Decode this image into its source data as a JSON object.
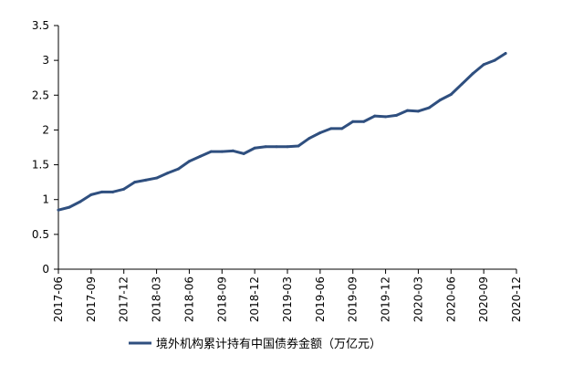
{
  "chart_data": {
    "type": "line",
    "title": "",
    "xlabel": "",
    "ylabel": "",
    "ylim": [
      0,
      3.5
    ],
    "yticks": [
      "0",
      "0.5",
      "1",
      "1.5",
      "2",
      "2.5",
      "3",
      "3.5"
    ],
    "xticks": [
      "2017-06",
      "2017-09",
      "2017-12",
      "2018-03",
      "2018-06",
      "2018-09",
      "2018-12",
      "2019-03",
      "2019-06",
      "2019-09",
      "2019-12",
      "2020-03",
      "2020-06",
      "2020-09",
      "2020-12"
    ],
    "grid": false,
    "legend_position": "bottom",
    "line_color": "#2f4f7f",
    "x": [
      "2017-06",
      "2017-07",
      "2017-08",
      "2017-09",
      "2017-10",
      "2017-11",
      "2017-12",
      "2018-01",
      "2018-02",
      "2018-03",
      "2018-04",
      "2018-05",
      "2018-06",
      "2018-07",
      "2018-08",
      "2018-09",
      "2018-10",
      "2018-11",
      "2018-12",
      "2019-01",
      "2019-02",
      "2019-03",
      "2019-04",
      "2019-05",
      "2019-06",
      "2019-07",
      "2019-08",
      "2019-09",
      "2019-10",
      "2019-11",
      "2019-12",
      "2020-01",
      "2020-02",
      "2020-03",
      "2020-04",
      "2020-05",
      "2020-06",
      "2020-07",
      "2020-08",
      "2020-09",
      "2020-10",
      "2020-11"
    ],
    "series": [
      {
        "name": "境外机构累计持有中国债券金额（万亿元）",
        "values": [
          0.85,
          0.89,
          0.97,
          1.07,
          1.11,
          1.11,
          1.15,
          1.25,
          1.28,
          1.31,
          1.38,
          1.44,
          1.55,
          1.62,
          1.69,
          1.69,
          1.7,
          1.66,
          1.74,
          1.76,
          1.76,
          1.76,
          1.77,
          1.88,
          1.96,
          2.02,
          2.02,
          2.12,
          2.12,
          2.2,
          2.19,
          2.21,
          2.28,
          2.27,
          2.32,
          2.43,
          2.51,
          2.66,
          2.81,
          2.94,
          3.0,
          3.1
        ]
      }
    ]
  }
}
